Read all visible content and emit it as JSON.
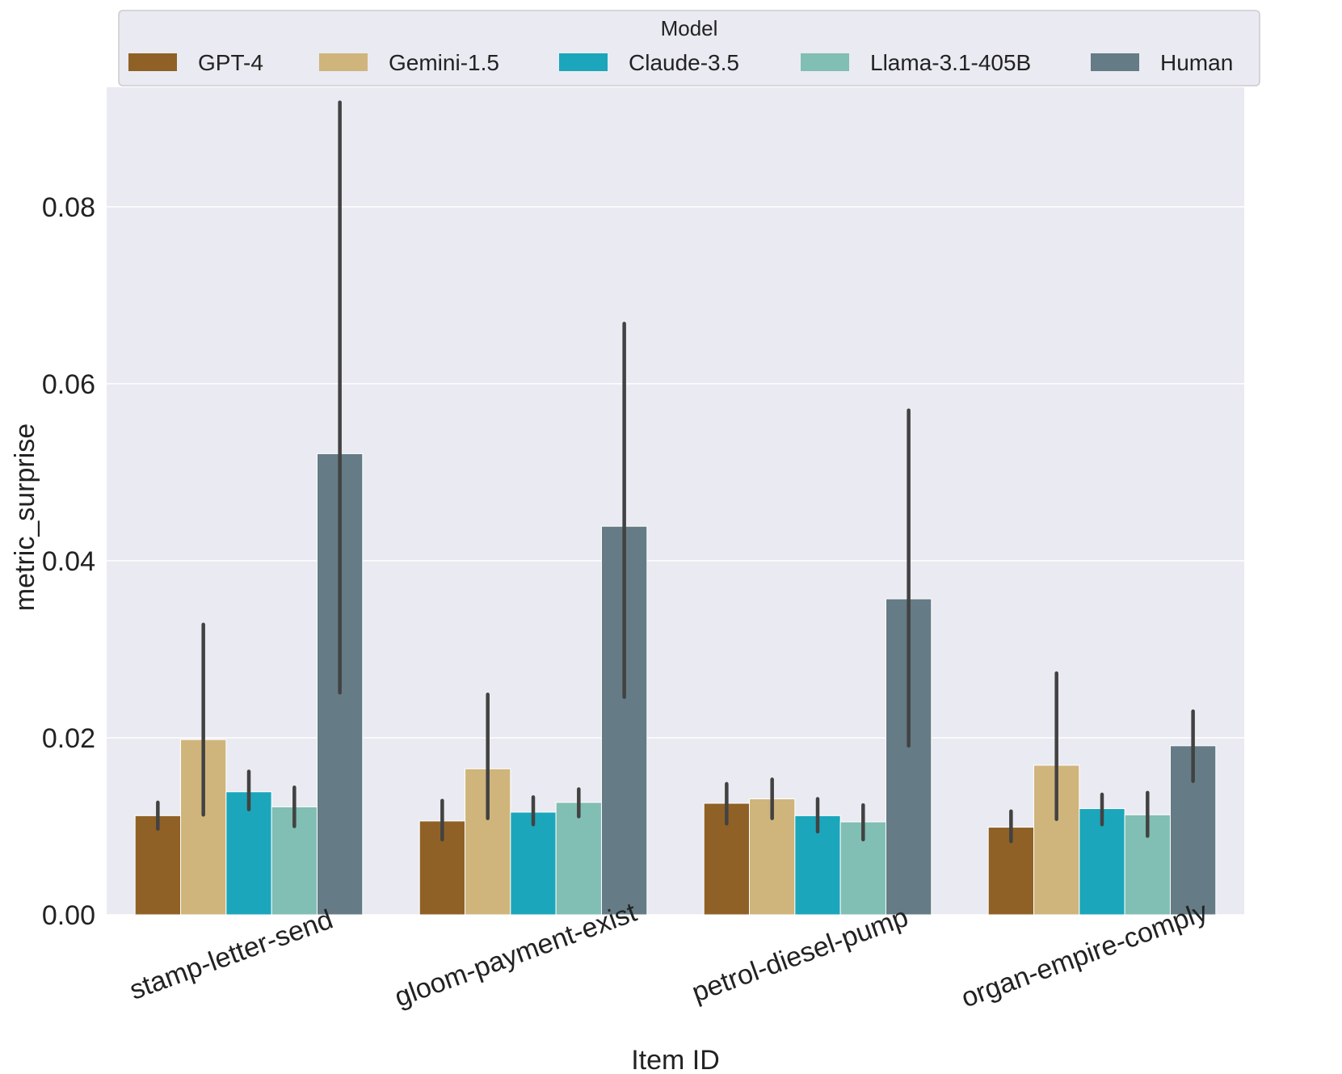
{
  "chart_data": {
    "type": "bar",
    "title": "",
    "xlabel": "Item ID",
    "ylabel": "metric_surprise",
    "ylim": [
      0,
      0.0935
    ],
    "yticks": [
      0.0,
      0.02,
      0.04,
      0.06,
      0.08
    ],
    "ytick_labels": [
      "0.00",
      "0.02",
      "0.04",
      "0.06",
      "0.08"
    ],
    "categories": [
      "stamp-letter-send",
      "gloom-payment-exist",
      "petrol-diesel-pump",
      "organ-empire-comply"
    ],
    "legend": {
      "title": "Model",
      "placement": "top"
    },
    "series": [
      {
        "name": "GPT-4",
        "color": "#8f6126",
        "values": [
          0.0112,
          0.0106,
          0.0126,
          0.0099
        ],
        "err_low": [
          0.0097,
          0.0085,
          0.0103,
          0.0083
        ],
        "err_high": [
          0.0127,
          0.0129,
          0.0148,
          0.0117
        ]
      },
      {
        "name": "Gemini-1.5",
        "color": "#cfb57c",
        "values": [
          0.0198,
          0.0165,
          0.0131,
          0.0169
        ],
        "err_low": [
          0.0113,
          0.0109,
          0.0109,
          0.0108
        ],
        "err_high": [
          0.0328,
          0.0249,
          0.0153,
          0.0273
        ]
      },
      {
        "name": "Claude-3.5",
        "color": "#1ca6bb",
        "values": [
          0.0139,
          0.0116,
          0.0112,
          0.012
        ],
        "err_low": [
          0.0119,
          0.0102,
          0.0094,
          0.0102
        ],
        "err_high": [
          0.0162,
          0.0133,
          0.0131,
          0.0136
        ]
      },
      {
        "name": "Llama-3.1-405B",
        "color": "#81beb3",
        "values": [
          0.0122,
          0.0127,
          0.0105,
          0.0113
        ],
        "err_low": [
          0.01,
          0.0111,
          0.0085,
          0.0089
        ],
        "err_high": [
          0.0144,
          0.0142,
          0.0124,
          0.0138
        ]
      },
      {
        "name": "Human",
        "color": "#657b85",
        "values": [
          0.0521,
          0.0439,
          0.0357,
          0.0191
        ],
        "err_low": [
          0.0251,
          0.0246,
          0.0191,
          0.0151
        ],
        "err_high": [
          0.0918,
          0.0668,
          0.057,
          0.023
        ]
      }
    ]
  }
}
